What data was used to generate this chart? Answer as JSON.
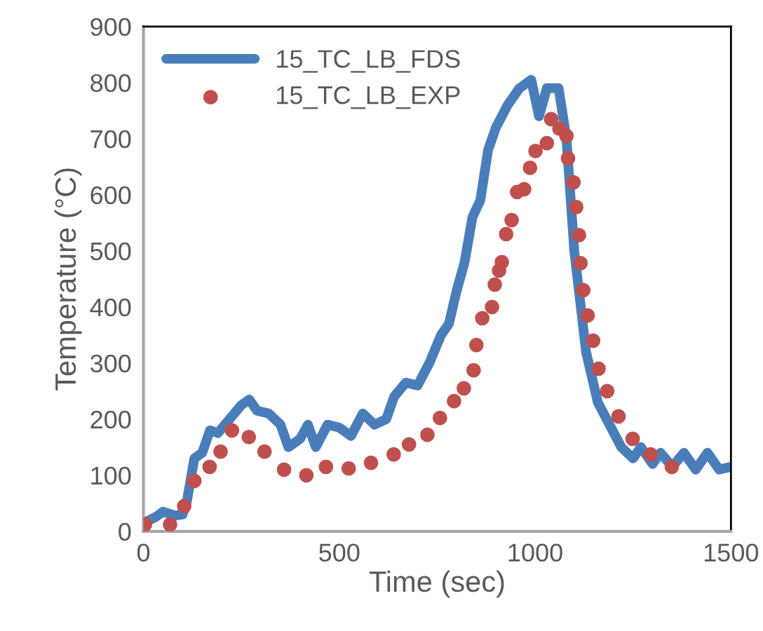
{
  "chart_data": {
    "type": "line",
    "xlabel": "Time (sec)",
    "ylabel": "Temperature (°C)",
    "xlim": [
      0,
      1500
    ],
    "xticks": [
      0,
      500,
      1000,
      1500
    ],
    "ylim": [
      0,
      900
    ],
    "yticks": [
      0,
      100,
      200,
      300,
      400,
      500,
      600,
      700,
      800,
      900
    ],
    "grid": false,
    "legend": "top left",
    "series": [
      {
        "name": "15_TC_LB_FDS",
        "color": "#4a7ebb",
        "marker": "none",
        "line_style": "solid",
        "x": [
          0,
          30,
          50,
          80,
          100,
          110,
          130,
          150,
          170,
          190,
          220,
          250,
          270,
          290,
          320,
          350,
          370,
          400,
          420,
          440,
          470,
          500,
          530,
          560,
          590,
          620,
          640,
          670,
          700,
          730,
          760,
          780,
          800,
          820,
          840,
          860,
          880,
          900,
          930,
          960,
          990,
          1010,
          1030,
          1060,
          1080,
          1100,
          1130,
          1160,
          1190,
          1220,
          1250,
          1270,
          1300,
          1320,
          1350,
          1380,
          1410,
          1440,
          1470,
          1500
        ],
        "values": [
          15,
          25,
          35,
          28,
          30,
          50,
          130,
          140,
          180,
          175,
          200,
          225,
          235,
          215,
          210,
          190,
          150,
          165,
          190,
          150,
          190,
          185,
          170,
          210,
          190,
          200,
          240,
          265,
          260,
          300,
          350,
          370,
          430,
          480,
          560,
          590,
          680,
          720,
          760,
          790,
          805,
          740,
          790,
          790,
          700,
          500,
          320,
          230,
          190,
          150,
          130,
          150,
          120,
          140,
          115,
          140,
          110,
          140,
          110,
          115
        ]
      },
      {
        "name": "15_TC_LB_EXP",
        "color": "#c0504d",
        "type": "scatter",
        "marker": "circle",
        "line_style": "none",
        "x": [
          4,
          68,
          104,
          130,
          169,
          197,
          226,
          269,
          309,
          359,
          416,
          466,
          524,
          581,
          639,
          678,
          725,
          757,
          793,
          818,
          843,
          850,
          865,
          890,
          897,
          908,
          915,
          926,
          940,
          954,
          972,
          987,
          1001,
          1030,
          1041,
          1062,
          1080,
          1084,
          1098,
          1105,
          1112,
          1116,
          1123,
          1134,
          1148,
          1162,
          1184,
          1213,
          1249,
          1295,
          1349
        ],
        "values": [
          12,
          12,
          45,
          90,
          115,
          142,
          180,
          168,
          142,
          110,
          100,
          115,
          112,
          122,
          137,
          155,
          172,
          202,
          232,
          255,
          287,
          332,
          380,
          400,
          440,
          465,
          480,
          530,
          555,
          605,
          610,
          648,
          678,
          692,
          735,
          718,
          705,
          665,
          622,
          578,
          528,
          478,
          430,
          385,
          340,
          290,
          250,
          205,
          165,
          137,
          115
        ]
      }
    ]
  }
}
